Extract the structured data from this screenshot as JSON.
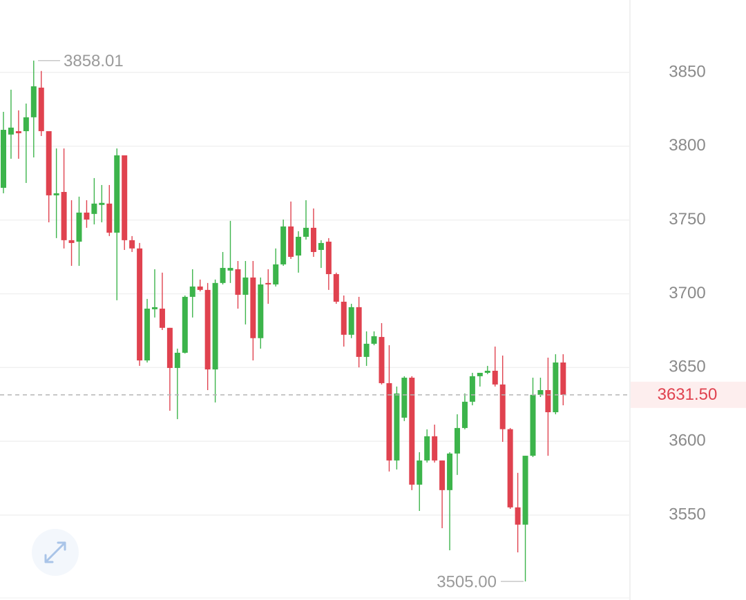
{
  "chart_data": {
    "type": "candlestick",
    "open": [
      3771.8,
      3807.9,
      3810.2,
      3810.2,
      3819.6,
      3839.7,
      3810.2,
      3766.7,
      3769.0,
      3736.3,
      3735.3,
      3755.0,
      3754.1,
      3760.2,
      3761.1,
      3741.4,
      3793.8,
      3736.3,
      3730.7,
      3654.8,
      3689.5,
      3689.9,
      3676.9,
      3649.7,
      3660.0,
      3697.9,
      3704.9,
      3702.6,
      3648.7,
      3707.3,
      3715.7,
      3716.6,
      3699.3,
      3711.0,
      3669.9,
      3707.3,
      3706.3,
      3719.9,
      3745.6,
      3725.9,
      3738.6,
      3744.7,
      3729.7,
      3735.3,
      3713.3,
      3694.6,
      3672.2,
      3690.9,
      3657.2,
      3666.1,
      3670.7,
      3639.4,
      3587.0,
      3616.0,
      3643.1,
      3570.6,
      3587.0,
      3603.4,
      3587.0,
      3566.9,
      3591.7,
      3609.0,
      3626.8,
      3644.1,
      3646.4,
      3647.8,
      3638.5,
      3608.2,
      3555.2,
      3543.5,
      3590.2,
      3631.5,
      3634.7,
      3619.7,
      3653.4
    ],
    "high": [
      3823.3,
      3838.3,
      3824.3,
      3828.9,
      3858.01,
      3851.0,
      3810.2,
      3798.5,
      3798.5,
      3763.4,
      3765.8,
      3763.4,
      3778.4,
      3773.7,
      3773.7,
      3798.5,
      3793.8,
      3739.1,
      3734.4,
      3696.5,
      3716.6,
      3714.3,
      3676.9,
      3662.8,
      3698.8,
      3716.6,
      3709.6,
      3707.3,
      3709.6,
      3728.3,
      3749.4,
      3722.2,
      3722.2,
      3722.2,
      3711.0,
      3716.6,
      3730.7,
      3750.3,
      3762.5,
      3742.4,
      3763.4,
      3757.8,
      3736.3,
      3737.7,
      3714.3,
      3698.8,
      3693.2,
      3697.9,
      3674.5,
      3674.5,
      3680.1,
      3665.1,
      3637.1,
      3644.1,
      3644.1,
      3592.6,
      3608.1,
      3611.3,
      3587.0,
      3592.6,
      3618.3,
      3632.4,
      3646.4,
      3646.4,
      3651.1,
      3664.2,
      3658.1,
      3609.0,
      3578.6,
      3590.2,
      3643.1,
      3643.1,
      3656.7,
      3659.0,
      3659.0
    ],
    "low": [
      3768.1,
      3791.5,
      3791.5,
      3775.1,
      3792.4,
      3806.9,
      3748.4,
      3737.7,
      3730.7,
      3718.9,
      3718.9,
      3744.7,
      3747.0,
      3748.4,
      3739.1,
      3695.6,
      3729.7,
      3728.3,
      3651.1,
      3653.4,
      3683.9,
      3675.4,
      3620.7,
      3615.0,
      3659.5,
      3683.9,
      3701.6,
      3634.7,
      3626.3,
      3706.3,
      3707.3,
      3689.9,
      3679.2,
      3654.8,
      3662.8,
      3693.2,
      3704.9,
      3718.9,
      3723.6,
      3714.3,
      3736.7,
      3725.0,
      3717.5,
      3702.6,
      3693.2,
      3664.2,
      3669.9,
      3650.1,
      3651.1,
      3665.1,
      3638.5,
      3579.5,
      3580.9,
      3613.7,
      3566.9,
      3552.8,
      3585.6,
      3585.6,
      3541.1,
      3526.1,
      3577.2,
      3608.1,
      3624.4,
      3637.1,
      3645.5,
      3637.1,
      3599.6,
      3554.2,
      3524.7,
      3505.0,
      3589.3,
      3630.0,
      3590.2,
      3618.3,
      3624.4
    ],
    "close": [
      3811.1,
      3812.6,
      3808.8,
      3819.6,
      3840.6,
      3810.2,
      3766.7,
      3768.1,
      3736.3,
      3734.4,
      3755.0,
      3750.3,
      3761.1,
      3761.6,
      3741.4,
      3793.8,
      3736.3,
      3730.7,
      3654.8,
      3689.9,
      3690.9,
      3676.9,
      3649.7,
      3660.0,
      3697.9,
      3704.9,
      3702.6,
      3648.7,
      3707.3,
      3717.5,
      3717.5,
      3699.3,
      3711.0,
      3669.9,
      3706.3,
      3706.3,
      3719.9,
      3745.6,
      3725.0,
      3738.6,
      3744.7,
      3728.3,
      3734.4,
      3713.3,
      3694.6,
      3672.2,
      3690.9,
      3657.2,
      3666.1,
      3671.2,
      3639.4,
      3587.0,
      3632.4,
      3643.1,
      3570.6,
      3587.0,
      3603.4,
      3587.0,
      3566.9,
      3591.7,
      3609.0,
      3626.8,
      3644.1,
      3646.4,
      3647.8,
      3638.5,
      3608.2,
      3555.2,
      3543.5,
      3590.2,
      3631.5,
      3634.7,
      3619.7,
      3653.4,
      3631.5
    ],
    "up_color": "#3cb44b",
    "down_color": "#e0424f",
    "ylim": [
      3495.7,
      3899.1
    ],
    "yticks": [
      3550,
      3600,
      3650,
      3700,
      3750,
      3800,
      3850
    ],
    "grid": true,
    "high_annotation": 3858.01,
    "low_annotation": {
      "value": 3505,
      "label": "3505.00"
    },
    "last_price": {
      "value": 3631.5,
      "label": "3631.50"
    }
  }
}
